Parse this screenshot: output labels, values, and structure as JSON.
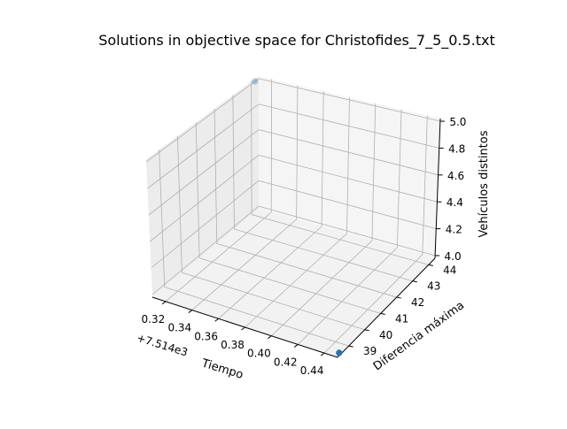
{
  "chart_data": {
    "type": "scatter",
    "projection": "3d",
    "title": "Solutions in objective space for Christofides_7_5_0.5.txt",
    "xlabel": "Tiempo",
    "ylabel": "Diferencia máxima",
    "zlabel": "Vehículos distintos",
    "x_offset_label": "+7.514e3",
    "x_ticks": [
      "0.32",
      "0.34",
      "0.36",
      "0.38",
      "0.40",
      "0.42",
      "0.44"
    ],
    "y_ticks": [
      "39",
      "40",
      "41",
      "42",
      "43",
      "44"
    ],
    "z_ticks": [
      "4.0",
      "4.2",
      "4.4",
      "4.6",
      "4.8",
      "5.0"
    ],
    "xlim": [
      7514.31,
      7514.45
    ],
    "ylim": [
      38.3,
      44.4
    ],
    "zlim": [
      3.98,
      5.02
    ],
    "grid": true,
    "color": "#1f77b4",
    "points": [
      {
        "x": 7514.45,
        "y": 38.4,
        "z": 4.0
      },
      {
        "x": 7514.31,
        "y": 44.2,
        "z": 5.0
      }
    ]
  }
}
